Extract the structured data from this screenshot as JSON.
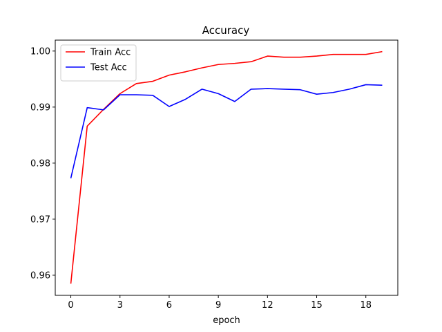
{
  "chart_data": {
    "type": "line",
    "title": "Accuracy",
    "xlabel": "epoch",
    "ylabel": "",
    "xlim": [
      -0.95,
      19.95
    ],
    "ylim": [
      0.95641,
      1.00195
    ],
    "x_ticks": [
      0,
      3,
      6,
      9,
      12,
      15,
      18
    ],
    "x_tick_labels": [
      "0",
      "3",
      "6",
      "9",
      "12",
      "15",
      "18"
    ],
    "y_ticks": [
      0.96,
      0.97,
      0.98,
      0.99,
      1.0
    ],
    "y_tick_labels": [
      "0.96",
      "0.97",
      "0.98",
      "0.99",
      "1.00"
    ],
    "grid": false,
    "legend_position": "upper-left",
    "x": [
      0,
      1,
      2,
      3,
      4,
      5,
      6,
      7,
      8,
      9,
      10,
      11,
      12,
      13,
      14,
      15,
      16,
      17,
      18,
      19
    ],
    "series": [
      {
        "name": "Train Acc",
        "color": "#ff0000",
        "values": [
          0.9585,
          0.9866,
          0.9896,
          0.9924,
          0.9942,
          0.9946,
          0.9957,
          0.9963,
          0.997,
          0.9976,
          0.9978,
          0.9981,
          0.9991,
          0.9989,
          0.9989,
          0.9991,
          0.9994,
          0.9994,
          0.9994,
          0.9999
        ]
      },
      {
        "name": "Test Acc",
        "color": "#0000ff",
        "values": [
          0.9773,
          0.9899,
          0.9895,
          0.9922,
          0.9922,
          0.9921,
          0.9901,
          0.9914,
          0.9932,
          0.9924,
          0.991,
          0.9932,
          0.9933,
          0.9932,
          0.9931,
          0.9923,
          0.9926,
          0.9932,
          0.994,
          0.9939
        ]
      }
    ]
  }
}
